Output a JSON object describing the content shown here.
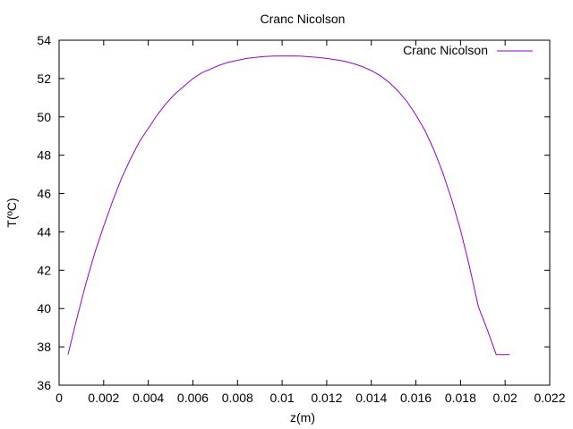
{
  "chart_data": {
    "type": "line",
    "title": "Cranc Nicolson",
    "xlabel": "z(m)",
    "ylabel": "T(ºC)",
    "xlim": [
      0,
      0.022
    ],
    "ylim": [
      36,
      54
    ],
    "x_ticks": [
      0,
      0.002,
      0.004,
      0.006,
      0.008,
      0.01,
      0.012,
      0.014,
      0.016,
      0.018,
      0.02,
      0.022
    ],
    "x_tick_labels": [
      "0",
      "0.002",
      "0.004",
      "0.006",
      "0.008",
      "0.01",
      "0.012",
      "0.014",
      "0.016",
      "0.018",
      "0.02",
      "0.022"
    ],
    "y_ticks": [
      36,
      38,
      40,
      42,
      44,
      46,
      48,
      50,
      52,
      54
    ],
    "y_tick_labels": [
      "36",
      "38",
      "40",
      "42",
      "44",
      "46",
      "48",
      "50",
      "52",
      "54"
    ],
    "grid": false,
    "legend_position": "top-right",
    "series": [
      {
        "name": "Cranc Nicolson",
        "color": "#9400d3",
        "x": [
          0.0004,
          0.0008,
          0.0012,
          0.0016,
          0.002,
          0.0024,
          0.0028,
          0.0032,
          0.0036,
          0.004,
          0.0044,
          0.0048,
          0.0052,
          0.0056,
          0.006,
          0.0064,
          0.0068,
          0.0072,
          0.0076,
          0.008,
          0.0084,
          0.0088,
          0.0092,
          0.0096,
          0.01,
          0.0104,
          0.0108,
          0.0112,
          0.0116,
          0.012,
          0.0124,
          0.0128,
          0.0132,
          0.0136,
          0.014,
          0.0144,
          0.0148,
          0.0152,
          0.0156,
          0.016,
          0.0164,
          0.0168,
          0.0172,
          0.0176,
          0.018,
          0.0184,
          0.0188,
          0.0192,
          0.0196,
          0.02,
          0.0202
        ],
        "values": [
          37.6,
          39.5,
          41.3,
          42.9,
          44.3,
          45.6,
          46.8,
          47.8,
          48.7,
          49.4,
          50.1,
          50.7,
          51.2,
          51.6,
          52.0,
          52.3,
          52.5,
          52.7,
          52.85,
          52.95,
          53.05,
          53.1,
          53.15,
          53.17,
          53.18,
          53.18,
          53.17,
          53.14,
          53.1,
          53.05,
          52.98,
          52.9,
          52.78,
          52.62,
          52.42,
          52.15,
          51.8,
          51.35,
          50.8,
          50.1,
          49.3,
          48.3,
          47.1,
          45.7,
          44.1,
          42.2,
          40.1,
          38.9,
          37.6,
          37.6,
          37.6
        ]
      }
    ]
  }
}
